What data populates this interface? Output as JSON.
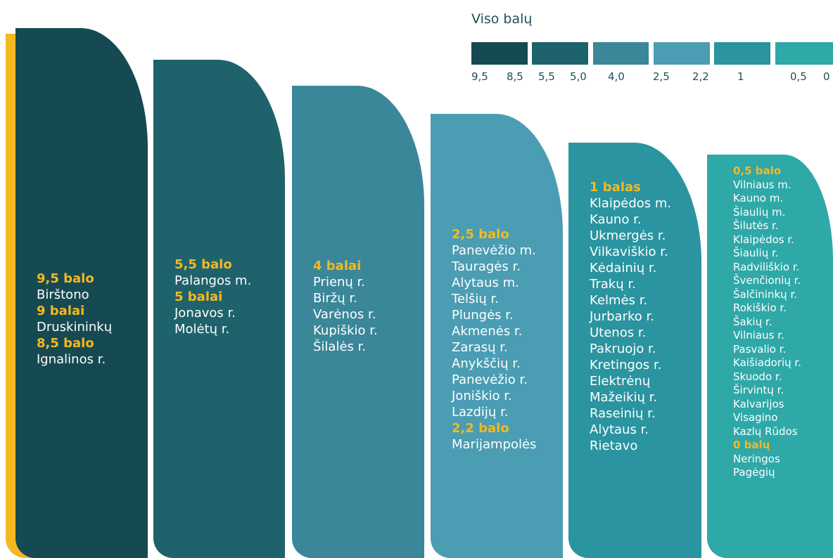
{
  "legend": {
    "title": "Viso balų",
    "swatches": [
      {
        "color": "#164a52",
        "labels": [
          "9,5",
          "8,5"
        ]
      },
      {
        "color": "#1e626c",
        "labels": [
          "5,5",
          "5,0"
        ]
      },
      {
        "color": "#3a8799",
        "labels": [
          "4,0"
        ]
      },
      {
        "color": "#4a9db2",
        "labels": [
          "2,5",
          "2,2"
        ]
      },
      {
        "color": "#2a94a0",
        "labels": [
          "1"
        ]
      },
      {
        "color": "#2fa8a8",
        "labels": [
          "0,5",
          "0"
        ]
      }
    ]
  },
  "columns": [
    {
      "color": "#164a52",
      "groups": [
        {
          "heading": "9,5 balo",
          "items": [
            "Birštono"
          ]
        },
        {
          "heading": "9 balai",
          "items": [
            "Druskininkų"
          ]
        },
        {
          "heading": "8,5 balo",
          "items": [
            "Ignalinos r."
          ]
        }
      ]
    },
    {
      "color": "#1e626c",
      "groups": [
        {
          "heading": "5,5 balo",
          "items": [
            "Palangos m."
          ]
        },
        {
          "heading": "5 balai",
          "items": [
            "Jonavos r.",
            "Molėtų r."
          ]
        }
      ]
    },
    {
      "color": "#3a8799",
      "groups": [
        {
          "heading": "4 balai",
          "items": [
            "Prienų r.",
            "Biržų r.",
            "Varėnos r.",
            "Kupiškio r.",
            "Šilalės r."
          ]
        }
      ]
    },
    {
      "color": "#4a9db2",
      "groups": [
        {
          "heading": "2,5 balo",
          "items": [
            "Panevėžio m.",
            "Tauragės r.",
            "Alytaus m.",
            "Telšių r.",
            "Plungės r.",
            "Akmenės r.",
            "Zarasų r.",
            "Anykščių r.",
            "Panevėžio r.",
            "Joniškio r.",
            "Lazdijų r."
          ]
        },
        {
          "heading": "2,2 balo",
          "items": [
            "Marijampolės"
          ]
        }
      ]
    },
    {
      "color": "#2a94a0",
      "groups": [
        {
          "heading": "1 balas",
          "items": [
            "Klaipėdos m.",
            "Kauno r.",
            "Ukmergės r.",
            "Vilkaviškio r.",
            "Kėdainių r.",
            "Trakų r.",
            "Kelmės r.",
            "Jurbarko r.",
            "Utenos r.",
            "Pakruojo r.",
            "Kretingos r.",
            "Elektrėnų",
            "Mažeikių r.",
            "Raseinių r.",
            "Alytaus r.",
            "Rietavo"
          ]
        }
      ]
    },
    {
      "color": "#2fa8a8",
      "groups": [
        {
          "heading": "0,5 balo",
          "items": [
            "Vilniaus m.",
            "Kauno m.",
            "Šiaulių m.",
            "Šilutės r.",
            "Klaipėdos r.",
            "Šiaulių r.",
            "Radviliškio r.",
            "Švenčionių r.",
            "Šalčininkų r.",
            "Rokiškio r.",
            "Šakių r.",
            "Vilniaus r.",
            "Pasvalio r.",
            "Kaišiadorių r.",
            "Skuodo r.",
            "Širvintų r.",
            "Kalvarijos",
            "Visagino",
            "Kazlų Rūdos"
          ]
        },
        {
          "heading": "0 balų",
          "items": [
            "Neringos",
            "Pagėgių"
          ]
        }
      ]
    }
  ]
}
